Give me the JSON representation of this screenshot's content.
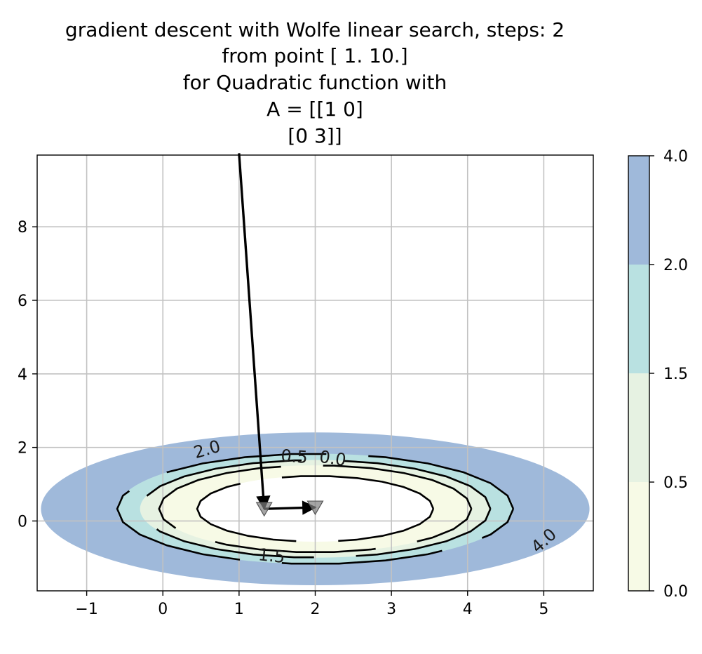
{
  "chart_data": {
    "type": "contour",
    "title_lines": [
      "gradient descent with Wolfe linear search, steps: 2",
      "from point [  1.  10.]",
      "for Quadratic function with",
      "A = [[1 0]",
      " [0 3]]"
    ],
    "xlabel": "",
    "ylabel": "",
    "xlim": [
      -1.65,
      5.65
    ],
    "ylim": [
      -1.9,
      9.95
    ],
    "x_ticks": [
      -1,
      0,
      1,
      2,
      3,
      4,
      5
    ],
    "x_tick_labels": [
      "−1",
      "0",
      "1",
      "2",
      "3",
      "4",
      "5"
    ],
    "y_ticks": [
      0,
      2,
      4,
      6,
      8
    ],
    "y_tick_labels": [
      "0",
      "2",
      "4",
      "6",
      "8"
    ],
    "grid": true,
    "center": [
      2,
      0.33
    ],
    "contour_levels": [
      0.0,
      0.5,
      1.5,
      2.0,
      4.0
    ],
    "level_semi_axes_x": [
      1.55,
      2.05,
      2.3,
      2.6,
      3.6
    ],
    "fill_bands": [
      {
        "from": 0.0,
        "to": 0.5,
        "color": "#f7fae6"
      },
      {
        "from": 0.5,
        "to": 1.5,
        "color": "#e6f2e2"
      },
      {
        "from": 1.5,
        "to": 2.0,
        "color": "#b9e1e1"
      },
      {
        "from": 2.0,
        "to": 4.0,
        "color": "#9fb9da"
      }
    ],
    "contour_labels": [
      {
        "text": "0.0",
        "x": 2.22,
        "y": 1.55,
        "angle": 8
      },
      {
        "text": "0.5",
        "x": 1.72,
        "y": 1.6,
        "angle": 4
      },
      {
        "text": "1.5",
        "x": 1.42,
        "y": -1.1,
        "angle": 6
      },
      {
        "text": "2.0",
        "x": 0.6,
        "y": 1.8,
        "angle": -16
      },
      {
        "text": "4.0",
        "x": 5.05,
        "y": -0.65,
        "angle": -42
      }
    ],
    "path": [
      {
        "x": 1.0,
        "y": 10.0
      },
      {
        "x": 1.33,
        "y": 0.33
      },
      {
        "x": 2.0,
        "y": 0.37
      }
    ],
    "colorbar": {
      "boundaries": [
        0.0,
        0.5,
        1.5,
        2.0,
        4.0
      ],
      "tick_labels": [
        "0.0",
        "0.5",
        "1.5",
        "2.0",
        "4.0"
      ],
      "colors": [
        "#f7fae6",
        "#e6f2e2",
        "#b9e1e1",
        "#9fb9da"
      ]
    },
    "colors": {
      "grid": "#c2c2c2",
      "contour_line": "#000000",
      "marker": "#7f7f7f",
      "arrow": "#000000"
    }
  }
}
